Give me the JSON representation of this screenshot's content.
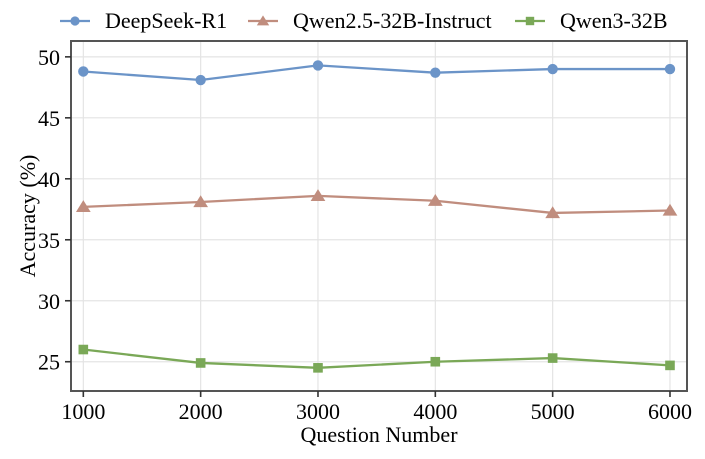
{
  "figure": {
    "xlabel": "Question Number",
    "ylabel": "Accuracy (%)"
  },
  "colors": {
    "blue_series": "#6b94c8",
    "brown_series": "#c08d7e",
    "green_series": "#7aa857",
    "gridline": "#e4e4e4",
    "spine": "#555555",
    "tick": "#333333"
  },
  "chart_data": {
    "type": "line",
    "title": "",
    "xlabel": "Question Number",
    "ylabel": "Accuracy (%)",
    "x": [
      1000,
      2000,
      3000,
      4000,
      5000,
      6000
    ],
    "series": [
      {
        "name": "DeepSeek-R1",
        "marker": "circle",
        "color": "#6b94c8",
        "values": [
          48.8,
          48.1,
          49.3,
          48.7,
          49.0,
          49.0
        ]
      },
      {
        "name": "Qwen2.5-32B-Instruct",
        "marker": "triangle",
        "color": "#c08d7e",
        "values": [
          37.7,
          38.1,
          38.6,
          38.2,
          37.2,
          37.4
        ]
      },
      {
        "name": "Qwen3-32B",
        "marker": "square",
        "color": "#7aa857",
        "values": [
          26.0,
          24.9,
          24.5,
          25.0,
          25.3,
          24.7
        ]
      }
    ],
    "xticks": [
      1000,
      2000,
      3000,
      4000,
      5000,
      6000
    ],
    "yticks": [
      25,
      30,
      35,
      40,
      45,
      50
    ],
    "xlim": [
      895,
      6145
    ],
    "ylim": [
      22.6,
      51.3
    ],
    "grid": true,
    "legend_position": "top",
    "legend_frame": false
  }
}
